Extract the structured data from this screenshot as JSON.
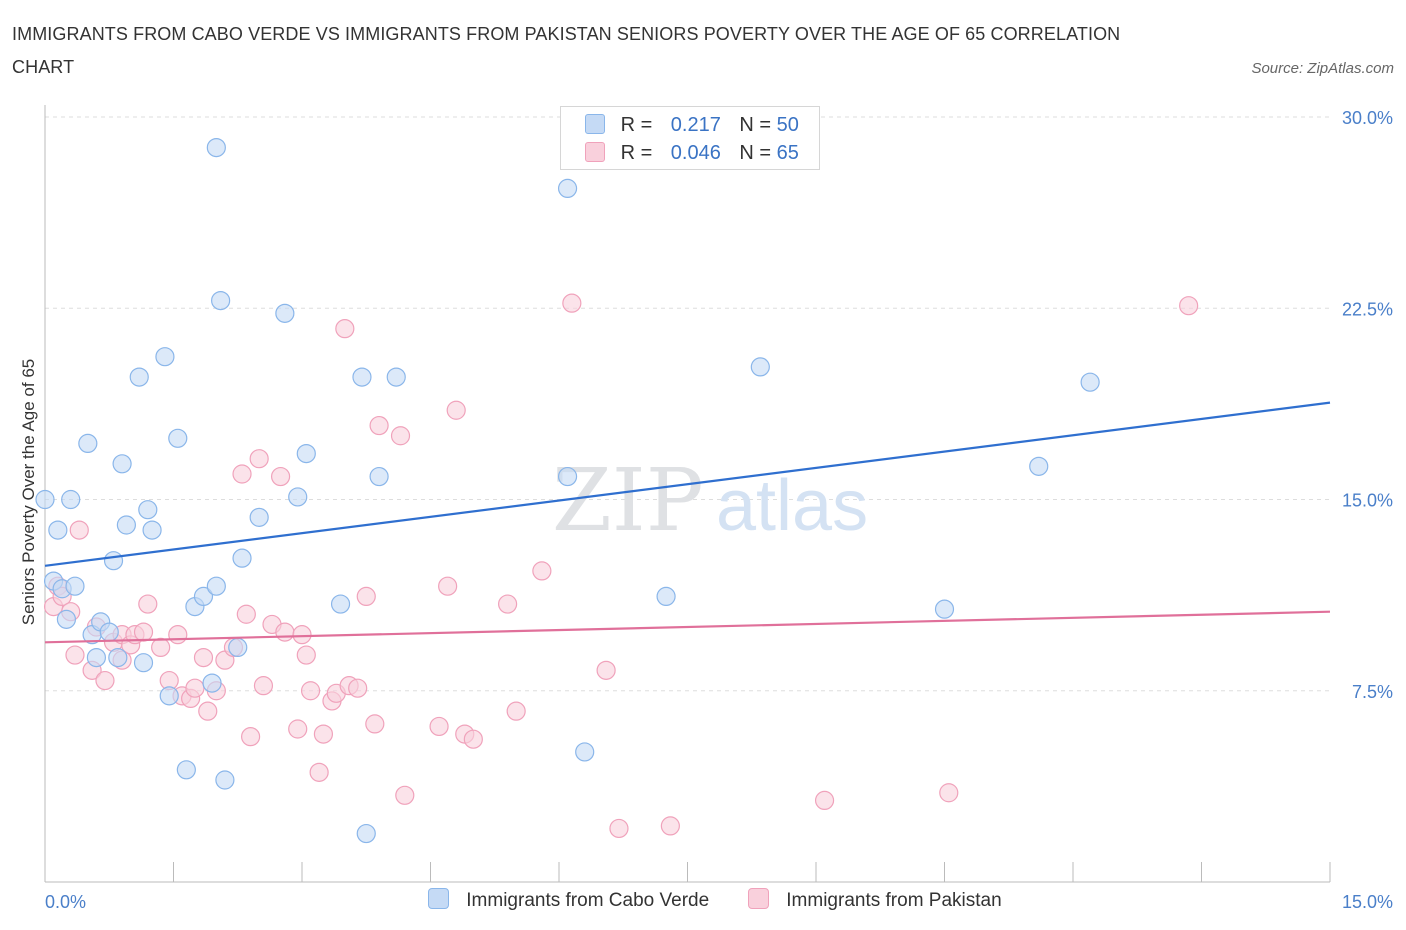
{
  "chart_data": {
    "type": "scatter",
    "title": "IMMIGRANTS FROM CABO VERDE VS IMMIGRANTS FROM PAKISTAN SENIORS POVERTY OVER THE AGE OF 65 CORRELATION CHART",
    "source": "Source: ZipAtlas.com",
    "ylabel": "Seniors Poverty Over the Age of 65",
    "xlim": [
      0,
      15
    ],
    "ylim": [
      0,
      30
    ],
    "x_tick_labels": [
      "0.0%",
      "15.0%"
    ],
    "y_ticks": [
      7.5,
      15,
      22.5,
      30
    ],
    "y_tick_labels": [
      "7.5%",
      "15.0%",
      "22.5%",
      "30.0%"
    ],
    "watermark": {
      "zip": "ZIP",
      "atlas": "atlas"
    },
    "legend": {
      "r_label": "R =",
      "n_label": "N =",
      "items": [
        {
          "r": "0.217",
          "n": "50"
        },
        {
          "r": "0.046",
          "n": "65"
        }
      ]
    },
    "series": [
      {
        "name": "Immigrants from Cabo Verde",
        "color": "#8ab6ea",
        "fill": "#c5daf5",
        "trend_color": "#2f6fcf",
        "trend": [
          [
            0,
            12.4
          ],
          [
            15,
            18.8
          ]
        ],
        "points": [
          [
            0.0,
            15.0
          ],
          [
            0.15,
            13.8
          ],
          [
            0.1,
            11.8
          ],
          [
            0.2,
            11.5
          ],
          [
            0.25,
            10.3
          ],
          [
            0.35,
            11.6
          ],
          [
            0.3,
            15.0
          ],
          [
            0.5,
            17.2
          ],
          [
            0.55,
            9.7
          ],
          [
            0.6,
            8.8
          ],
          [
            0.65,
            10.2
          ],
          [
            0.75,
            9.8
          ],
          [
            0.8,
            12.6
          ],
          [
            0.85,
            8.8
          ],
          [
            0.9,
            16.4
          ],
          [
            0.95,
            14.0
          ],
          [
            1.1,
            19.8
          ],
          [
            1.15,
            8.6
          ],
          [
            1.2,
            14.6
          ],
          [
            1.25,
            13.8
          ],
          [
            1.4,
            20.6
          ],
          [
            1.45,
            7.3
          ],
          [
            1.55,
            17.4
          ],
          [
            1.65,
            4.4
          ],
          [
            1.75,
            10.8
          ],
          [
            1.85,
            11.2
          ],
          [
            1.95,
            7.8
          ],
          [
            2.0,
            11.6
          ],
          [
            2.0,
            28.8
          ],
          [
            2.05,
            22.8
          ],
          [
            2.1,
            4.0
          ],
          [
            2.25,
            9.2
          ],
          [
            2.3,
            12.7
          ],
          [
            2.5,
            14.3
          ],
          [
            2.8,
            22.3
          ],
          [
            2.95,
            15.1
          ],
          [
            3.05,
            16.8
          ],
          [
            3.45,
            10.9
          ],
          [
            3.75,
            1.9
          ],
          [
            3.7,
            19.8
          ],
          [
            3.9,
            15.9
          ],
          [
            4.1,
            19.8
          ],
          [
            6.1,
            27.2
          ],
          [
            6.1,
            15.9
          ],
          [
            6.3,
            5.1
          ],
          [
            7.25,
            11.2
          ],
          [
            8.35,
            20.2
          ],
          [
            10.5,
            10.7
          ],
          [
            11.6,
            16.3
          ],
          [
            12.2,
            19.6
          ]
        ]
      },
      {
        "name": "Immigrants from Pakistan",
        "color": "#f0a2bb",
        "fill": "#f9d0dc",
        "trend_color": "#e0709a",
        "trend": [
          [
            0,
            9.4
          ],
          [
            15,
            10.6
          ]
        ],
        "points": [
          [
            0.1,
            10.8
          ],
          [
            0.15,
            11.6
          ],
          [
            0.2,
            11.2
          ],
          [
            0.3,
            10.6
          ],
          [
            0.35,
            8.9
          ],
          [
            0.4,
            13.8
          ],
          [
            0.55,
            8.3
          ],
          [
            0.6,
            10.0
          ],
          [
            0.7,
            7.9
          ],
          [
            0.8,
            9.4
          ],
          [
            0.9,
            9.7
          ],
          [
            0.9,
            8.7
          ],
          [
            1.0,
            9.3
          ],
          [
            1.05,
            9.7
          ],
          [
            1.15,
            9.8
          ],
          [
            1.2,
            10.9
          ],
          [
            1.35,
            9.2
          ],
          [
            1.45,
            7.9
          ],
          [
            1.55,
            9.7
          ],
          [
            1.6,
            7.3
          ],
          [
            1.7,
            7.2
          ],
          [
            1.75,
            7.6
          ],
          [
            1.85,
            8.8
          ],
          [
            1.9,
            6.7
          ],
          [
            2.0,
            7.5
          ],
          [
            2.1,
            8.7
          ],
          [
            2.2,
            9.2
          ],
          [
            2.3,
            16.0
          ],
          [
            2.35,
            10.5
          ],
          [
            2.4,
            5.7
          ],
          [
            2.5,
            16.6
          ],
          [
            2.55,
            7.7
          ],
          [
            2.65,
            10.1
          ],
          [
            2.75,
            15.9
          ],
          [
            2.8,
            9.8
          ],
          [
            2.95,
            6.0
          ],
          [
            3.0,
            9.7
          ],
          [
            3.05,
            8.9
          ],
          [
            3.1,
            7.5
          ],
          [
            3.2,
            4.3
          ],
          [
            3.25,
            5.8
          ],
          [
            3.35,
            7.1
          ],
          [
            3.4,
            7.4
          ],
          [
            3.5,
            21.7
          ],
          [
            3.55,
            7.7
          ],
          [
            3.65,
            7.6
          ],
          [
            3.75,
            11.2
          ],
          [
            3.85,
            6.2
          ],
          [
            3.9,
            17.9
          ],
          [
            4.15,
            17.5
          ],
          [
            4.2,
            3.4
          ],
          [
            4.6,
            6.1
          ],
          [
            4.7,
            11.6
          ],
          [
            4.8,
            18.5
          ],
          [
            4.9,
            5.8
          ],
          [
            5.0,
            5.6
          ],
          [
            5.4,
            10.9
          ],
          [
            5.5,
            6.7
          ],
          [
            5.8,
            12.2
          ],
          [
            6.15,
            22.7
          ],
          [
            6.55,
            8.3
          ],
          [
            6.7,
            2.1
          ],
          [
            7.3,
            2.2
          ],
          [
            9.1,
            3.2
          ],
          [
            10.55,
            3.5
          ],
          [
            13.35,
            22.6
          ]
        ]
      }
    ]
  }
}
